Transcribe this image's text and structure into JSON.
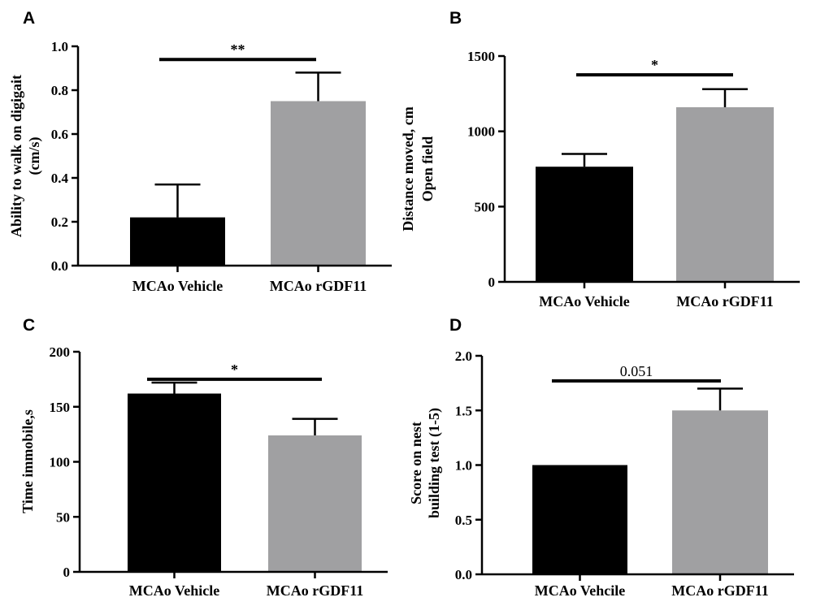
{
  "colors": {
    "vehicle": "#000000",
    "rgdf11": "#a0a0a2",
    "axis": "#000000"
  },
  "chart_data": [
    {
      "type": "bar",
      "panel": "A",
      "categories": [
        "MCAo Vehicle",
        "MCAo rGDF11"
      ],
      "values": [
        0.22,
        0.75
      ],
      "errors": [
        0.15,
        0.13
      ],
      "ylabel_lines": [
        "Ability to walk on digigait",
        "(cm/s)"
      ],
      "ylim": [
        0,
        1.0
      ],
      "yticks": [
        0.0,
        0.2,
        0.4,
        0.6,
        0.8,
        1.0
      ],
      "ytick_labels": [
        "0.0",
        "0.2",
        "0.4",
        "0.6",
        "0.8",
        "1.0"
      ],
      "significance": {
        "label": "**",
        "y_value": 0.94
      }
    },
    {
      "type": "bar",
      "panel": "B",
      "categories": [
        "MCAo Vehicle",
        "MCAo rGDF11"
      ],
      "values": [
        765,
        1160
      ],
      "errors": [
        85,
        120
      ],
      "ylabel_lines": [
        "Distance moved, cm",
        "Open field"
      ],
      "ylim": [
        0,
        1500
      ],
      "yticks": [
        0,
        500,
        1000,
        1500
      ],
      "ytick_labels": [
        "0",
        "500",
        "1000",
        "1500"
      ],
      "significance": {
        "label": "*",
        "y_value": 1375
      }
    },
    {
      "type": "bar",
      "panel": "C",
      "categories": [
        "MCAo Vehicle",
        "MCAo rGDF11"
      ],
      "values": [
        162,
        124
      ],
      "errors": [
        10,
        15
      ],
      "ylabel_lines": [
        "Time immobile,s"
      ],
      "ylim": [
        0,
        200
      ],
      "yticks": [
        0,
        50,
        100,
        150,
        200
      ],
      "ytick_labels": [
        "0",
        "50",
        "100",
        "150",
        "200"
      ],
      "significance": {
        "label": "*",
        "y_value": 175
      }
    },
    {
      "type": "bar",
      "panel": "D",
      "categories": [
        "MCAo Vehcile",
        "MCAo rGDF11"
      ],
      "values": [
        1.0,
        1.5
      ],
      "errors": [
        0,
        0.2
      ],
      "ylabel_lines": [
        "Score on nest",
        "building test (1-5)"
      ],
      "ylim": [
        0,
        2.0
      ],
      "yticks": [
        0.0,
        0.5,
        1.0,
        1.5,
        2.0
      ],
      "ytick_labels": [
        "0.0",
        "0.5",
        "1.0",
        "1.5",
        "2.0"
      ],
      "significance": {
        "label": "0.051",
        "y_value": 1.77
      }
    }
  ]
}
